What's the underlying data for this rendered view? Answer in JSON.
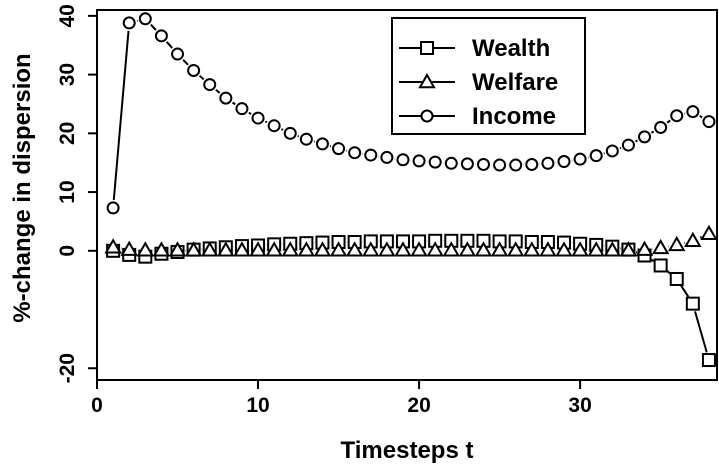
{
  "chart_data": {
    "type": "line",
    "title": "",
    "xlabel": "Timesteps t",
    "ylabel": "%-change in dispersion",
    "xlim": [
      0,
      38.5
    ],
    "ylim": [
      -22,
      41
    ],
    "x_ticks": [
      0,
      10,
      20,
      30
    ],
    "y_ticks": [
      -20,
      0,
      10,
      20,
      30,
      40
    ],
    "grid": false,
    "legend_position": "top-center",
    "series": [
      {
        "name": "Wealth",
        "marker": "square",
        "x": [
          1,
          2,
          3,
          4,
          5,
          6,
          7,
          8,
          9,
          10,
          11,
          12,
          13,
          14,
          15,
          16,
          17,
          18,
          19,
          20,
          21,
          22,
          23,
          24,
          25,
          26,
          27,
          28,
          29,
          30,
          31,
          32,
          33,
          34,
          35,
          36,
          37,
          38
        ],
        "y": [
          0.0,
          -0.7,
          -1.0,
          -0.5,
          -0.2,
          0.2,
          0.4,
          0.6,
          0.8,
          0.9,
          1.1,
          1.2,
          1.3,
          1.4,
          1.5,
          1.5,
          1.6,
          1.6,
          1.6,
          1.6,
          1.7,
          1.7,
          1.7,
          1.7,
          1.6,
          1.6,
          1.5,
          1.5,
          1.4,
          1.2,
          1.0,
          0.7,
          0.2,
          -0.8,
          -2.5,
          -4.8,
          -9.0,
          -18.6
        ]
      },
      {
        "name": "Welfare",
        "marker": "triangle",
        "x": [
          1,
          2,
          3,
          4,
          5,
          6,
          7,
          8,
          9,
          10,
          11,
          12,
          13,
          14,
          15,
          16,
          17,
          18,
          19,
          20,
          21,
          22,
          23,
          24,
          25,
          26,
          27,
          28,
          29,
          30,
          31,
          32,
          33,
          34,
          35,
          36,
          37,
          38
        ],
        "y": [
          0.6,
          0.2,
          0.1,
          0.1,
          0.1,
          0.1,
          0.1,
          0.1,
          0.1,
          0.1,
          0.1,
          0.1,
          0.1,
          0.1,
          0.1,
          0.1,
          0.1,
          0.1,
          0.1,
          0.1,
          0.1,
          0.1,
          0.1,
          0.1,
          0.1,
          0.1,
          0.1,
          0.1,
          0.1,
          0.1,
          0.1,
          0.1,
          0.1,
          0.2,
          0.5,
          1.0,
          1.7,
          2.9
        ]
      },
      {
        "name": "Income",
        "marker": "circle",
        "x": [
          1,
          2,
          3,
          4,
          5,
          6,
          7,
          8,
          9,
          10,
          11,
          12,
          13,
          14,
          15,
          16,
          17,
          18,
          19,
          20,
          21,
          22,
          23,
          24,
          25,
          26,
          27,
          28,
          29,
          30,
          31,
          32,
          33,
          34,
          35,
          36,
          37,
          38
        ],
        "y": [
          7.3,
          38.8,
          39.5,
          36.6,
          33.5,
          30.7,
          28.3,
          26.0,
          24.2,
          22.6,
          21.3,
          20.0,
          19.0,
          18.2,
          17.4,
          16.7,
          16.3,
          15.9,
          15.5,
          15.3,
          15.1,
          14.9,
          14.8,
          14.7,
          14.6,
          14.6,
          14.7,
          14.9,
          15.2,
          15.6,
          16.2,
          17.0,
          18.0,
          19.4,
          21.0,
          23.0,
          23.7,
          22.0
        ]
      }
    ]
  }
}
